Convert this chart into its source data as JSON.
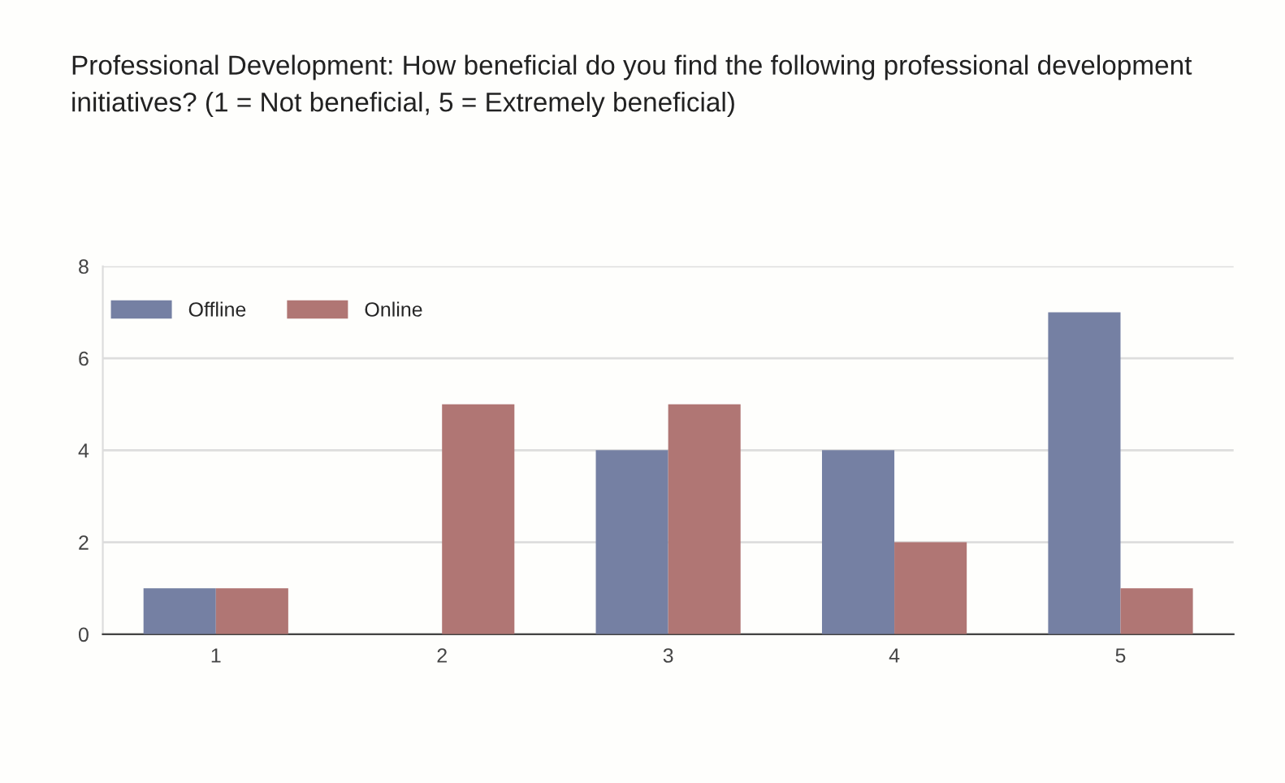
{
  "chart_data": {
    "type": "bar",
    "title": "Professional Development: How beneficial do you find the following professional development initiatives? (1 = Not beneficial, 5 = Extremely beneficial)",
    "categories": [
      "1",
      "2",
      "3",
      "4",
      "5"
    ],
    "series": [
      {
        "name": "Offline",
        "color": "#7580a3",
        "values": [
          1,
          0,
          4,
          4,
          7
        ]
      },
      {
        "name": "Online",
        "color": "#b07674",
        "values": [
          1,
          5,
          5,
          2,
          1
        ]
      }
    ],
    "ylim": [
      0,
      8
    ],
    "yticks": [
      0,
      2,
      4,
      6,
      8
    ],
    "grid": "y",
    "legend": "top left"
  }
}
